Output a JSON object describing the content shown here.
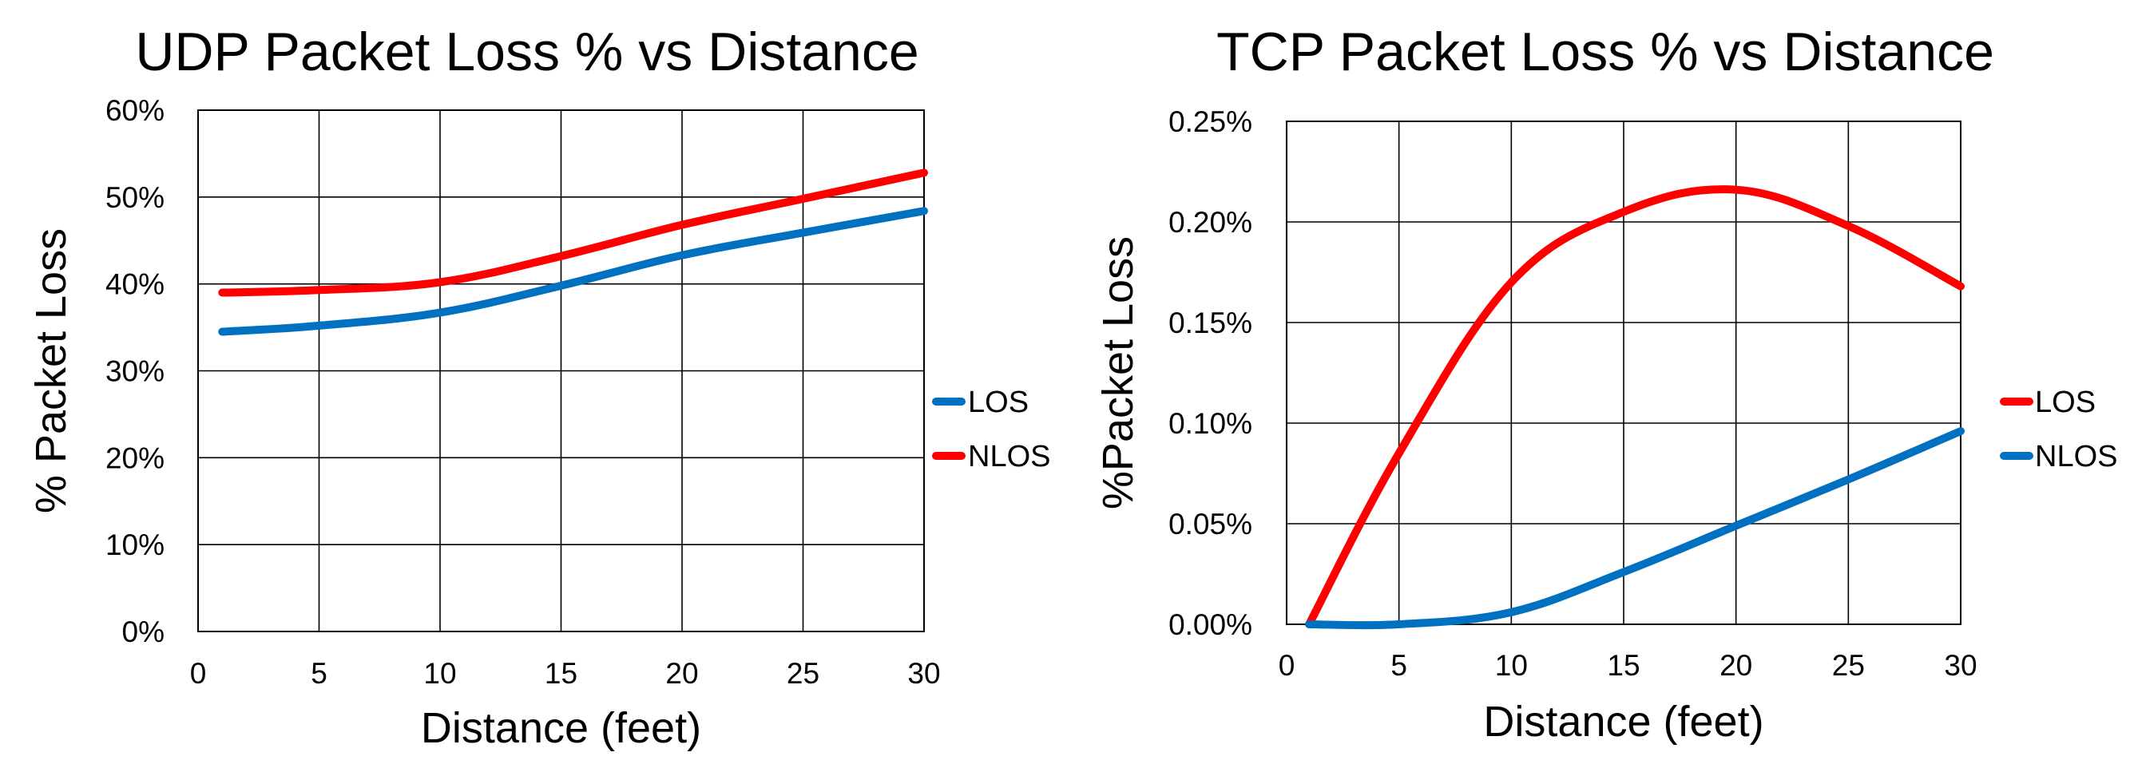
{
  "chart_data": [
    {
      "type": "line",
      "title": "UDP Packet Loss % vs Distance",
      "xlabel": "Distance (feet)",
      "ylabel": "% Packet Loss",
      "xlim": [
        0,
        30
      ],
      "ylim": [
        0,
        60
      ],
      "x_ticks": [
        "0",
        "5",
        "10",
        "15",
        "20",
        "25",
        "30"
      ],
      "y_ticks": [
        "0%",
        "10%",
        "20%",
        "30%",
        "40%",
        "50%",
        "60%"
      ],
      "grid": true,
      "legend_position": "right",
      "series": [
        {
          "name": "LOS",
          "color": "#0070C0",
          "x": [
            1,
            5,
            10,
            15,
            20,
            25,
            30
          ],
          "y": [
            34.5,
            35.2,
            36.7,
            39.8,
            43.3,
            45.9,
            48.4
          ]
        },
        {
          "name": "NLOS",
          "color": "#FF0000",
          "x": [
            1,
            5,
            10,
            15,
            20,
            25,
            30
          ],
          "y": [
            39.0,
            39.3,
            40.2,
            43.2,
            46.8,
            49.8,
            52.8
          ]
        }
      ]
    },
    {
      "type": "line",
      "title": "TCP Packet Loss % vs Distance",
      "xlabel": "Distance (feet)",
      "ylabel": "%Packet Loss",
      "xlim": [
        0,
        30
      ],
      "ylim": [
        0,
        0.25
      ],
      "x_ticks": [
        "0",
        "5",
        "10",
        "15",
        "20",
        "25",
        "30"
      ],
      "y_ticks": [
        "0.00%",
        "0.05%",
        "0.10%",
        "0.15%",
        "0.20%",
        "0.25%"
      ],
      "grid": true,
      "legend_position": "right",
      "series": [
        {
          "name": "LOS",
          "color": "#FF0000",
          "x": [
            1,
            5,
            10,
            15,
            20,
            25,
            30
          ],
          "y": [
            0.0,
            0.085,
            0.17,
            0.205,
            0.216,
            0.198,
            0.168
          ]
        },
        {
          "name": "NLOS",
          "color": "#0070C0",
          "x": [
            1,
            5,
            10,
            15,
            20,
            25,
            30
          ],
          "y": [
            0.0,
            0.0,
            0.006,
            0.026,
            0.049,
            0.072,
            0.096
          ]
        }
      ]
    }
  ]
}
